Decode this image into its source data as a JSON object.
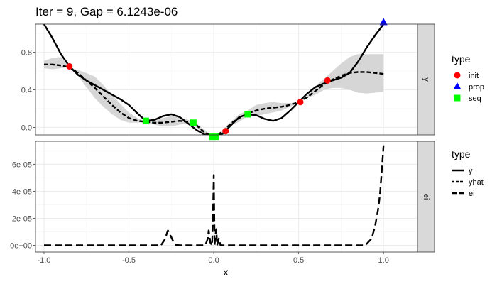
{
  "title": "Iter = 9, Gap = 6.1243e-06",
  "chart_data": {
    "type": "line",
    "title": "Iter = 9, Gap = 6.1243e-06",
    "xlabel": "x",
    "xlim": [
      -1.05,
      1.2
    ],
    "x_ticks": [
      "-1.0",
      "-0.5",
      "0.0",
      "0.5",
      "1.0"
    ],
    "x_tick_values": [
      -1.0,
      -0.5,
      0.0,
      0.5,
      1.0
    ],
    "colors": {
      "init": "#ff0000",
      "prop": "#0000ff",
      "seq": "#00ff00",
      "band": "#d4d4d4",
      "line": "#000000",
      "strip": "#d9d9d9"
    },
    "facets": [
      {
        "strip": "y",
        "ylim": [
          -0.08,
          1.1
        ],
        "y_ticks": [
          "0.0",
          "0.4",
          "0.8"
        ],
        "y_tick_values": [
          0.0,
          0.4,
          0.8
        ],
        "series": [
          {
            "name": "y",
            "linetype": "solid",
            "x": [
              -1.0,
              -0.95,
              -0.9,
              -0.85,
              -0.8,
              -0.75,
              -0.7,
              -0.65,
              -0.6,
              -0.55,
              -0.5,
              -0.45,
              -0.4,
              -0.35,
              -0.3,
              -0.25,
              -0.2,
              -0.15,
              -0.1,
              -0.05,
              0.0,
              0.05,
              0.1,
              0.15,
              0.2,
              0.25,
              0.3,
              0.35,
              0.4,
              0.45,
              0.5,
              0.55,
              0.6,
              0.65,
              0.7,
              0.75,
              0.8,
              0.85,
              0.9,
              0.95,
              1.0
            ],
            "y": [
              1.1,
              0.95,
              0.78,
              0.65,
              0.56,
              0.5,
              0.45,
              0.4,
              0.35,
              0.3,
              0.24,
              0.15,
              0.07,
              0.08,
              0.12,
              0.14,
              0.11,
              0.04,
              -0.03,
              -0.08,
              -0.1,
              -0.07,
              0.02,
              0.11,
              0.14,
              0.13,
              0.09,
              0.07,
              0.1,
              0.18,
              0.27,
              0.36,
              0.43,
              0.47,
              0.5,
              0.53,
              0.58,
              0.7,
              0.85,
              0.98,
              1.1
            ]
          },
          {
            "name": "yhat",
            "linetype": "dashed",
            "x": [
              -1.0,
              -0.95,
              -0.9,
              -0.85,
              -0.8,
              -0.75,
              -0.7,
              -0.65,
              -0.6,
              -0.55,
              -0.5,
              -0.45,
              -0.4,
              -0.35,
              -0.3,
              -0.25,
              -0.2,
              -0.15,
              -0.1,
              -0.05,
              0.0,
              0.05,
              0.1,
              0.15,
              0.2,
              0.25,
              0.3,
              0.35,
              0.4,
              0.45,
              0.5,
              0.55,
              0.6,
              0.65,
              0.7,
              0.75,
              0.8,
              0.85,
              0.9,
              0.95,
              1.0
            ],
            "y": [
              0.67,
              0.67,
              0.66,
              0.64,
              0.58,
              0.5,
              0.42,
              0.33,
              0.24,
              0.16,
              0.1,
              0.07,
              0.06,
              0.05,
              0.05,
              0.06,
              0.07,
              0.06,
              0.02,
              -0.06,
              -0.1,
              -0.05,
              0.04,
              0.1,
              0.15,
              0.18,
              0.2,
              0.21,
              0.22,
              0.24,
              0.27,
              0.32,
              0.39,
              0.46,
              0.51,
              0.55,
              0.58,
              0.59,
              0.59,
              0.58,
              0.57
            ]
          }
        ],
        "band": {
          "x": [
            -1.0,
            -0.95,
            -0.9,
            -0.85,
            -0.8,
            -0.75,
            -0.7,
            -0.65,
            -0.6,
            -0.55,
            -0.5,
            -0.45,
            -0.4,
            -0.35,
            -0.3,
            -0.25,
            -0.2,
            -0.15,
            -0.1,
            -0.05,
            0.0,
            0.05,
            0.1,
            0.15,
            0.2,
            0.25,
            0.3,
            0.35,
            0.4,
            0.45,
            0.5,
            0.55,
            0.6,
            0.65,
            0.7,
            0.75,
            0.8,
            0.85,
            0.9,
            0.95,
            1.0
          ],
          "lower": [
            0.63,
            0.62,
            0.63,
            0.64,
            0.55,
            0.43,
            0.31,
            0.22,
            0.14,
            0.08,
            0.05,
            0.05,
            0.06,
            0.03,
            0.01,
            0.01,
            0.03,
            0.04,
            0.0,
            -0.09,
            -0.1,
            -0.07,
            0.02,
            0.06,
            0.12,
            0.12,
            0.14,
            0.16,
            0.18,
            0.22,
            0.27,
            0.31,
            0.35,
            0.4,
            0.42,
            0.42,
            0.4,
            0.37,
            0.36,
            0.37,
            0.38
          ],
          "upper": [
            0.71,
            0.74,
            0.75,
            0.64,
            0.61,
            0.58,
            0.54,
            0.45,
            0.35,
            0.25,
            0.16,
            0.1,
            0.06,
            0.08,
            0.1,
            0.12,
            0.11,
            0.08,
            0.04,
            -0.03,
            -0.1,
            -0.03,
            0.06,
            0.14,
            0.18,
            0.24,
            0.26,
            0.27,
            0.26,
            0.26,
            0.27,
            0.34,
            0.44,
            0.52,
            0.6,
            0.68,
            0.75,
            0.78,
            0.78,
            0.78,
            0.78
          ]
        },
        "points": [
          {
            "type": "init",
            "shape": "circle",
            "x": -0.85,
            "y": 0.65
          },
          {
            "type": "init",
            "shape": "circle",
            "x": 0.07,
            "y": -0.04
          },
          {
            "type": "init",
            "shape": "circle",
            "x": 0.51,
            "y": 0.27
          },
          {
            "type": "init",
            "shape": "circle",
            "x": 0.67,
            "y": 0.5
          },
          {
            "type": "prop",
            "shape": "triangle",
            "x": 1.0,
            "y": 1.12
          },
          {
            "type": "seq",
            "shape": "square",
            "x": -0.4,
            "y": 0.07
          },
          {
            "type": "seq",
            "shape": "square",
            "x": -0.12,
            "y": 0.05
          },
          {
            "type": "seq",
            "shape": "square",
            "x": -0.01,
            "y": -0.1
          },
          {
            "type": "seq",
            "shape": "square",
            "x": 0.01,
            "y": -0.1
          },
          {
            "type": "seq",
            "shape": "square",
            "x": 0.2,
            "y": 0.14
          }
        ]
      },
      {
        "strip": "ei",
        "ylim": [
          -5e-06,
          7.7e-05
        ],
        "y_ticks": [
          "0e+00",
          "2e-05",
          "4e-05",
          "6e-05"
        ],
        "y_tick_values": [
          0,
          2e-05,
          4e-05,
          6e-05
        ],
        "series": [
          {
            "name": "ei",
            "linetype": "longdash",
            "x": [
              -1.0,
              -0.4,
              -0.34,
              -0.31,
              -0.29,
              -0.27,
              -0.25,
              -0.23,
              -0.2,
              -0.1,
              -0.05,
              -0.035,
              -0.03,
              -0.02,
              -0.01,
              -0.005,
              0.0,
              0.005,
              0.01,
              0.015,
              0.02,
              0.03,
              0.04,
              0.06,
              0.5,
              0.88,
              0.9,
              0.93,
              0.95,
              0.97,
              0.98,
              0.99,
              1.0
            ],
            "y": [
              0,
              0,
              0,
              2e-07,
              4e-06,
              1.1e-05,
              6e-06,
              5e-07,
              0,
              0,
              0,
              5e-06,
              1.1e-05,
              2e-06,
              0,
              2e-05,
              5.2e-05,
              0,
              8e-06,
              1.2e-05,
              0,
              5e-06,
              0,
              0,
              0,
              0,
              1e-06,
              5e-06,
              1.4e-05,
              2.8e-05,
              3.9e-05,
              5.6e-05,
              7.4e-05
            ]
          }
        ]
      }
    ],
    "legends": [
      {
        "title": "type",
        "items": [
          {
            "label": "init",
            "shape": "circle",
            "color": "#ff0000"
          },
          {
            "label": "prop",
            "shape": "triangle",
            "color": "#0000ff"
          },
          {
            "label": "seq",
            "shape": "square",
            "color": "#00ff00"
          }
        ]
      },
      {
        "title": "type",
        "items": [
          {
            "label": "y",
            "linetype": "solid"
          },
          {
            "label": "yhat",
            "linetype": "dashed"
          },
          {
            "label": "ei",
            "linetype": "longdash"
          }
        ]
      }
    ]
  }
}
